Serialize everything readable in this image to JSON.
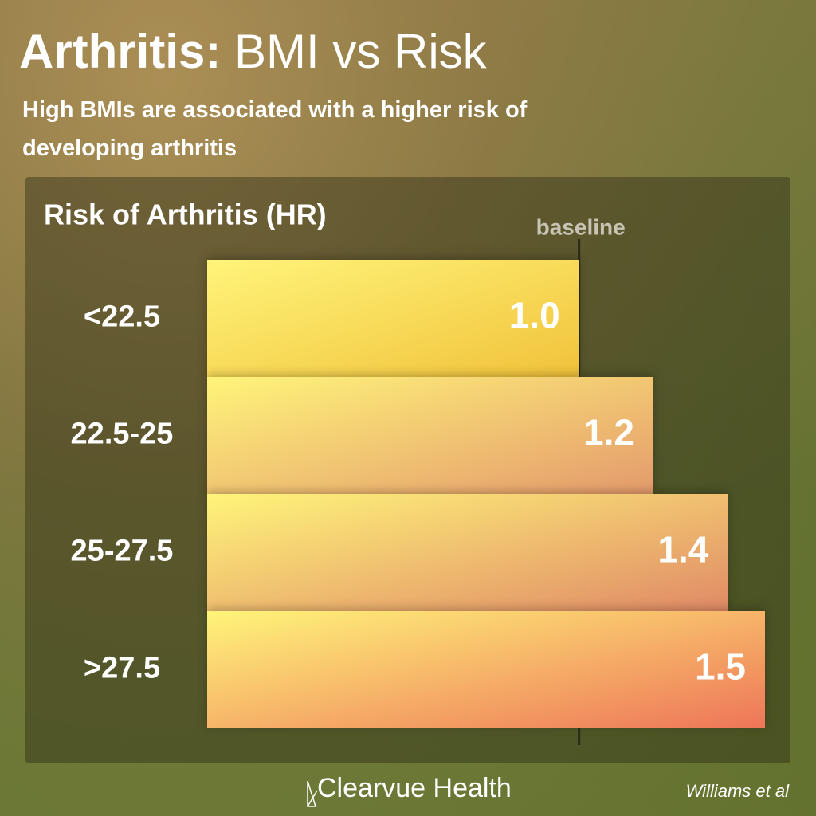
{
  "chart_data": {
    "type": "hbar",
    "title_parts": [
      "Arthritis:",
      "BMI vs Risk"
    ],
    "subtitle": "High BMIs are associated with a higher risk of developing arthritis",
    "chart_title": "Risk of Arthritis (HR)",
    "categories": [
      "<22.5",
      "22.5-25",
      "25-27.5",
      ">27.5"
    ],
    "values": [
      1.0,
      1.2,
      1.4,
      1.5
    ],
    "value_labels": [
      "1.0",
      "1.2",
      "1.4",
      "1.5"
    ],
    "color_start": "#fff47a",
    "colors": [
      "#f1c23a",
      "#e49a6c",
      "#e08a66",
      "#ee7558"
    ],
    "xlim": [
      0,
      1.5
    ],
    "baseline": {
      "label": "baseline",
      "value": 1
    },
    "brand": "Clearvue Health",
    "source": "Williams et al"
  }
}
